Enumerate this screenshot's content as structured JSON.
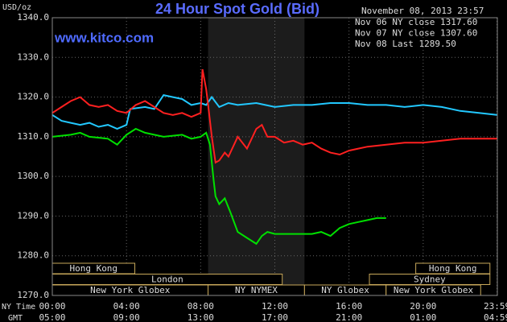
{
  "chart_data": {
    "type": "line",
    "title": "24 Hour Spot Gold (Bid)",
    "subtitle": "November 08, 2013 23:57",
    "watermark": "www.kitco.com",
    "y_label": "USD/oz",
    "x_label": "NY Time",
    "x2_label": "GMT",
    "xlim": [
      0,
      24
    ],
    "ylim": [
      1270,
      1340
    ],
    "yticks": [
      {
        "value": 1270,
        "label": "1270.0"
      },
      {
        "value": 1280,
        "label": "1280.0"
      },
      {
        "value": 1290,
        "label": "1290.0"
      },
      {
        "value": 1300,
        "label": "1300.0"
      },
      {
        "value": 1310,
        "label": "1310.0"
      },
      {
        "value": 1320,
        "label": "1320.0"
      },
      {
        "value": 1330,
        "label": "1330.0"
      },
      {
        "value": 1340,
        "label": "1340.0"
      }
    ],
    "xticks": [
      {
        "value": 0,
        "label": "00:00"
      },
      {
        "value": 4,
        "label": "04:00"
      },
      {
        "value": 8,
        "label": "08:00"
      },
      {
        "value": 12,
        "label": "12:00"
      },
      {
        "value": 16,
        "label": "16:00"
      },
      {
        "value": 20,
        "label": "20:00"
      },
      {
        "value": 23.98,
        "label": "23:59"
      }
    ],
    "x2ticks": [
      {
        "value": 0,
        "label": "05:00"
      },
      {
        "value": 4,
        "label": "09:00"
      },
      {
        "value": 8,
        "label": "13:00"
      },
      {
        "value": 12,
        "label": "17:00"
      },
      {
        "value": 16,
        "label": "21:00"
      },
      {
        "value": 20,
        "label": "01:00"
      },
      {
        "value": 23.98,
        "label": "04:59"
      }
    ],
    "grid": true,
    "series": [
      {
        "name": "Nov 06 NY close 1317.60",
        "color": "#22c8ff",
        "x": [
          0,
          0.5,
          1,
          1.5,
          2,
          2.5,
          3,
          3.5,
          4,
          4.2,
          5,
          5.5,
          6,
          6.5,
          7,
          7.5,
          8,
          8.3,
          8.6,
          9,
          9.5,
          10,
          11,
          12,
          13,
          14,
          15,
          16,
          17,
          18,
          19,
          20,
          21,
          22,
          23,
          23.98
        ],
        "values": [
          1315.5,
          1314,
          1313.5,
          1313,
          1313.5,
          1312.5,
          1313,
          1312,
          1313,
          1317,
          1317.5,
          1317,
          1320.5,
          1320,
          1319.5,
          1318,
          1318.5,
          1318,
          1320,
          1317.5,
          1318.5,
          1318,
          1318.5,
          1317.5,
          1318,
          1318,
          1318.5,
          1318.5,
          1318,
          1318,
          1317.5,
          1318,
          1317.5,
          1316.5,
          1316,
          1315.5
        ]
      },
      {
        "name": "Nov 07 NY close 1307.60",
        "color": "#ff2020",
        "x": [
          0,
          0.5,
          1,
          1.5,
          2,
          2.5,
          3,
          3.5,
          4,
          4.5,
          5,
          5.5,
          6,
          6.5,
          7,
          7.5,
          8,
          8.1,
          8.3,
          8.4,
          8.6,
          8.8,
          9,
          9.3,
          9.5,
          10,
          10.5,
          11,
          11.3,
          11.6,
          12,
          12.5,
          13,
          13.5,
          14,
          14.5,
          15,
          15.5,
          16,
          16.5,
          17,
          18,
          19,
          20,
          21,
          22,
          23,
          23.98
        ],
        "values": [
          1316,
          1317.5,
          1319,
          1320,
          1318,
          1317.5,
          1318,
          1316.5,
          1316,
          1318,
          1319,
          1317.5,
          1316,
          1315.5,
          1316,
          1315,
          1316,
          1327,
          1322,
          1318,
          1310,
          1303.5,
          1304,
          1306,
          1305,
          1310,
          1307,
          1312,
          1313,
          1310,
          1310,
          1308.5,
          1309,
          1308,
          1308.5,
          1307,
          1306,
          1305.5,
          1306.5,
          1307,
          1307.5,
          1308,
          1308.5,
          1308.5,
          1309,
          1309.5,
          1309.5,
          1309.5
        ]
      },
      {
        "name": "Nov 08 Last 1289.50",
        "color": "#00e000",
        "x": [
          0,
          1,
          1.5,
          2,
          3,
          3.5,
          4,
          4.5,
          5,
          5.5,
          6,
          7,
          7.5,
          8,
          8.3,
          8.5,
          8.7,
          8.8,
          9,
          9.3,
          9.6,
          10,
          10.5,
          11,
          11.3,
          11.6,
          12,
          13,
          14,
          14.5,
          15,
          15.5,
          16,
          16.5,
          17,
          17.5,
          18
        ],
        "values": [
          1310,
          1310.5,
          1311,
          1310,
          1309.5,
          1308,
          1310.5,
          1312,
          1311,
          1310.5,
          1310,
          1310.5,
          1309.5,
          1310,
          1311,
          1308,
          1299,
          1295,
          1293,
          1294.5,
          1291,
          1286,
          1284.5,
          1283,
          1285,
          1286,
          1285.5,
          1285.5,
          1285.5,
          1286,
          1285,
          1287,
          1288,
          1288.5,
          1289,
          1289.5,
          1289.5
        ]
      }
    ],
    "session_rows": [
      [
        {
          "label": "Hong Kong",
          "start": 0,
          "end": 4.45
        },
        {
          "label": "Hong Kong",
          "start": 19.6,
          "end": 23.6
        }
      ],
      [
        {
          "label": "London",
          "start": 0,
          "end": 12.4
        },
        {
          "label": "Sydney",
          "start": 17.1,
          "end": 23.6
        }
      ],
      [
        {
          "label": "New York Globex",
          "start": 0,
          "end": 8.4
        },
        {
          "label": "NY NYMEX",
          "start": 8.4,
          "end": 13.6
        },
        {
          "label": "NY Globex",
          "start": 13.6,
          "end": 18
        },
        {
          "label": "New York Globex",
          "start": 18,
          "end": 23.1
        }
      ]
    ],
    "shaded_session": [
      2,
      1
    ]
  }
}
